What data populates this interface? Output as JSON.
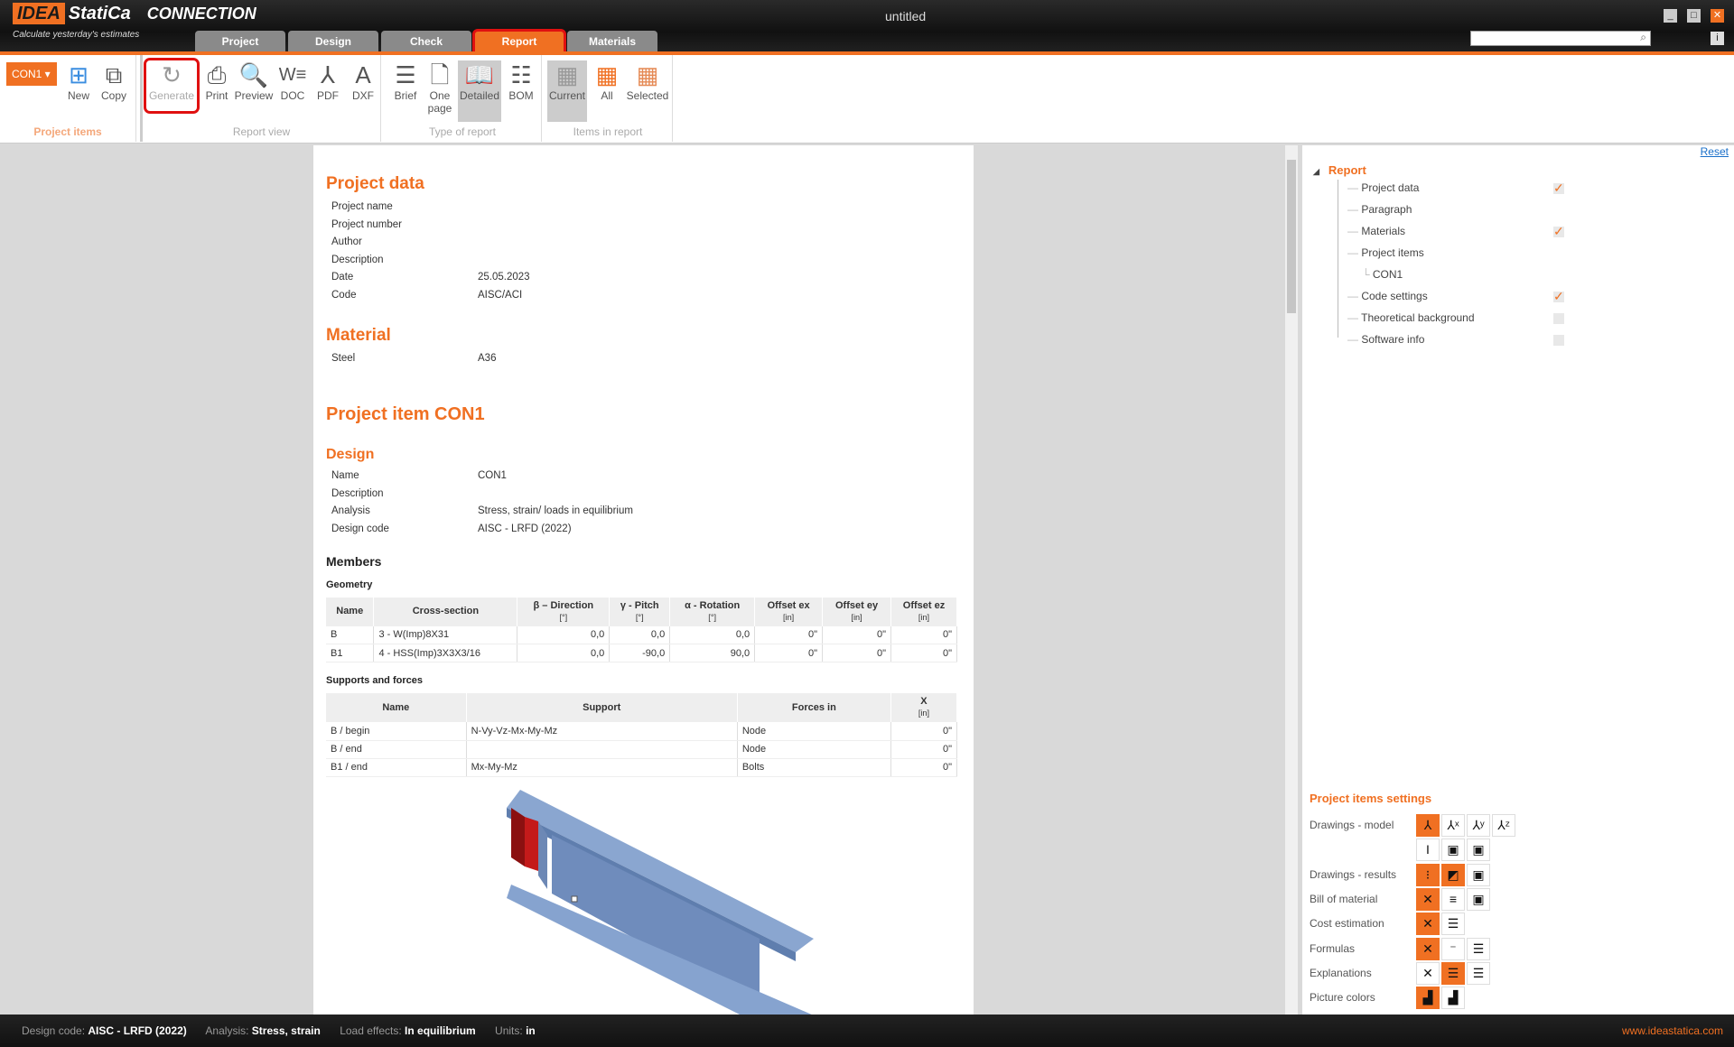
{
  "app": {
    "logo": "IDEA StatiCa",
    "product": "CONNECTION",
    "slogan": "Calculate yesterday's estimates",
    "title": "untitled"
  },
  "tabs": [
    {
      "label": "Project"
    },
    {
      "label": "Design"
    },
    {
      "label": "Check"
    },
    {
      "label": "Report",
      "active": true
    },
    {
      "label": "Materials"
    }
  ],
  "ribbon": {
    "project_items": {
      "label": "Project items",
      "selector": "CON1",
      "new": "New",
      "copy": "Copy"
    },
    "report_view": {
      "label": "Report view",
      "generate": "Generate",
      "print": "Print",
      "preview": "Preview",
      "doc": "DOC",
      "pdf": "PDF",
      "dxf": "DXF"
    },
    "type_of_report": {
      "label": "Type of report",
      "brief": "Brief",
      "one_page": "One page",
      "detailed": "Detailed",
      "bom": "BOM",
      "selected": "Detailed"
    },
    "items_in_report": {
      "label": "Items in report",
      "current": "Current",
      "all": "All",
      "selected_btn": "Selected",
      "selected": "Current"
    }
  },
  "doc": {
    "project_data": {
      "title": "Project data",
      "rows": [
        {
          "k": "Project name",
          "v": ""
        },
        {
          "k": "Project number",
          "v": ""
        },
        {
          "k": "Author",
          "v": ""
        },
        {
          "k": "Description",
          "v": ""
        },
        {
          "k": "Date",
          "v": "25.05.2023"
        },
        {
          "k": "Code",
          "v": "AISC/ACI"
        }
      ]
    },
    "material": {
      "title": "Material",
      "rows": [
        {
          "k": "Steel",
          "v": "A36"
        }
      ]
    },
    "project_item": {
      "title": "Project item CON1"
    },
    "design": {
      "title": "Design",
      "rows": [
        {
          "k": "Name",
          "v": "CON1"
        },
        {
          "k": "Description",
          "v": ""
        },
        {
          "k": "Analysis",
          "v": "Stress, strain/ loads in equilibrium"
        },
        {
          "k": "Design code",
          "v": "AISC - LRFD (2022)"
        }
      ]
    },
    "members_title": "Members",
    "geometry": {
      "title": "Geometry",
      "headers": [
        {
          "t": "Name",
          "u": ""
        },
        {
          "t": "Cross-section",
          "u": ""
        },
        {
          "t": "β – Direction",
          "u": "[°]"
        },
        {
          "t": "γ - Pitch",
          "u": "[°]"
        },
        {
          "t": "α - Rotation",
          "u": "[°]"
        },
        {
          "t": "Offset ex",
          "u": "[in]"
        },
        {
          "t": "Offset ey",
          "u": "[in]"
        },
        {
          "t": "Offset ez",
          "u": "[in]"
        }
      ],
      "rows": [
        [
          "B",
          "3 - W(Imp)8X31",
          "0,0",
          "0,0",
          "0,0",
          "0\"",
          "0\"",
          "0\""
        ],
        [
          "B1",
          "4 - HSS(Imp)3X3X3/16",
          "0,0",
          "-90,0",
          "90,0",
          "0\"",
          "0\"",
          "0\""
        ]
      ]
    },
    "supports": {
      "title": "Supports and forces",
      "headers": [
        {
          "t": "Name",
          "u": ""
        },
        {
          "t": "Support",
          "u": ""
        },
        {
          "t": "Forces in",
          "u": ""
        },
        {
          "t": "X",
          "u": "[in]"
        }
      ],
      "rows": [
        [
          "B / begin",
          "N-Vy-Vz-Mx-My-Mz",
          "Node",
          "0\""
        ],
        [
          "B / end",
          "",
          "Node",
          "0\""
        ],
        [
          "B1 / end",
          "Mx-My-Mz",
          "Bolts",
          "0\""
        ]
      ]
    }
  },
  "right": {
    "reset": "Reset",
    "tree": {
      "root": "Report",
      "items": [
        {
          "label": "Project data",
          "checked": true
        },
        {
          "label": "Paragraph",
          "checked": null
        },
        {
          "label": "Materials",
          "checked": true
        },
        {
          "label": "Project items",
          "checked": null
        },
        {
          "label": "CON1",
          "checked": null,
          "child": true
        },
        {
          "label": "Code settings",
          "checked": true
        },
        {
          "label": "Theoretical background",
          "checked": false
        },
        {
          "label": "Software info",
          "checked": false
        }
      ]
    },
    "settings": {
      "title": "Project items settings",
      "rows": [
        "Drawings - model",
        "Drawings - results",
        "Bill of material",
        "Cost estimation",
        "Formulas",
        "Explanations",
        "Picture colors"
      ]
    }
  },
  "status": {
    "design_code_label": "Design code:",
    "design_code": "AISC - LRFD (2022)",
    "analysis_label": "Analysis:",
    "analysis": "Stress, strain",
    "load_label": "Load effects:",
    "load": "In equilibrium",
    "units_label": "Units:",
    "units": "in",
    "url": "www.ideastatica.com"
  },
  "colors": {
    "accent": "#f07022",
    "highlight": "#e01010",
    "member": "#7f9cc8"
  }
}
